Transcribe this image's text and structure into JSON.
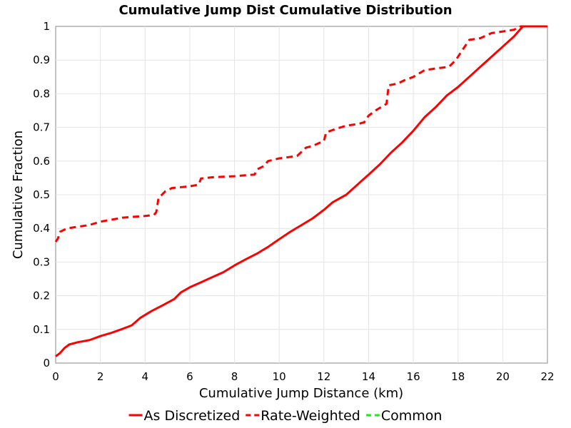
{
  "chart_data": {
    "type": "line",
    "title": "Cumulative Jump Dist Cumulative Distribution",
    "xlabel": "Cumulative Jump Distance (km)",
    "ylabel": "Cumulative Fraction",
    "xlim": [
      0,
      22
    ],
    "ylim": [
      0,
      1
    ],
    "x_ticks": [
      "0",
      "2",
      "4",
      "6",
      "8",
      "10",
      "12",
      "14",
      "16",
      "18",
      "20",
      "22"
    ],
    "y_ticks": [
      "0",
      "0.1",
      "0.2",
      "0.3",
      "0.4",
      "0.5",
      "0.6",
      "0.7",
      "0.8",
      "0.9",
      "1"
    ],
    "grid": true,
    "legend_position": "bottom",
    "series": [
      {
        "name": "As Discretized",
        "color": "#ff0000",
        "style": "solid",
        "points": [
          [
            0.0,
            0.02
          ],
          [
            0.2,
            0.03
          ],
          [
            0.4,
            0.045
          ],
          [
            0.6,
            0.055
          ],
          [
            1.0,
            0.062
          ],
          [
            1.5,
            0.068
          ],
          [
            2.0,
            0.08
          ],
          [
            2.5,
            0.09
          ],
          [
            3.0,
            0.102
          ],
          [
            3.4,
            0.112
          ],
          [
            3.8,
            0.135
          ],
          [
            4.3,
            0.155
          ],
          [
            4.8,
            0.172
          ],
          [
            5.3,
            0.19
          ],
          [
            5.6,
            0.21
          ],
          [
            6.0,
            0.225
          ],
          [
            6.5,
            0.24
          ],
          [
            7.0,
            0.255
          ],
          [
            7.5,
            0.27
          ],
          [
            8.0,
            0.29
          ],
          [
            8.5,
            0.308
          ],
          [
            9.0,
            0.325
          ],
          [
            9.5,
            0.345
          ],
          [
            10.0,
            0.368
          ],
          [
            10.5,
            0.39
          ],
          [
            11.0,
            0.41
          ],
          [
            11.5,
            0.43
          ],
          [
            12.0,
            0.455
          ],
          [
            12.4,
            0.478
          ],
          [
            13.0,
            0.5
          ],
          [
            13.5,
            0.53
          ],
          [
            14.0,
            0.56
          ],
          [
            14.5,
            0.59
          ],
          [
            15.0,
            0.625
          ],
          [
            15.5,
            0.655
          ],
          [
            16.0,
            0.69
          ],
          [
            16.5,
            0.73
          ],
          [
            17.0,
            0.76
          ],
          [
            17.5,
            0.795
          ],
          [
            18.0,
            0.82
          ],
          [
            18.5,
            0.85
          ],
          [
            19.0,
            0.88
          ],
          [
            19.5,
            0.91
          ],
          [
            20.0,
            0.94
          ],
          [
            20.5,
            0.97
          ],
          [
            20.9,
            1.0
          ],
          [
            22.0,
            1.0
          ]
        ]
      },
      {
        "name": "Rate-Weighted",
        "color": "#ff0000",
        "style": "dashed",
        "points": [
          [
            0.0,
            0.36
          ],
          [
            0.1,
            0.37
          ],
          [
            0.2,
            0.39
          ],
          [
            0.5,
            0.4
          ],
          [
            1.0,
            0.405
          ],
          [
            1.5,
            0.41
          ],
          [
            2.0,
            0.42
          ],
          [
            3.0,
            0.432
          ],
          [
            4.0,
            0.437
          ],
          [
            4.4,
            0.44
          ],
          [
            4.5,
            0.448
          ],
          [
            4.6,
            0.49
          ],
          [
            4.9,
            0.51
          ],
          [
            5.2,
            0.52
          ],
          [
            6.0,
            0.525
          ],
          [
            6.4,
            0.53
          ],
          [
            6.5,
            0.548
          ],
          [
            7.0,
            0.552
          ],
          [
            8.0,
            0.555
          ],
          [
            8.9,
            0.56
          ],
          [
            9.0,
            0.575
          ],
          [
            9.3,
            0.585
          ],
          [
            9.5,
            0.6
          ],
          [
            10.0,
            0.608
          ],
          [
            10.8,
            0.615
          ],
          [
            11.2,
            0.64
          ],
          [
            11.5,
            0.645
          ],
          [
            12.0,
            0.66
          ],
          [
            12.1,
            0.685
          ],
          [
            12.5,
            0.695
          ],
          [
            13.0,
            0.705
          ],
          [
            13.5,
            0.71
          ],
          [
            13.8,
            0.715
          ],
          [
            14.0,
            0.735
          ],
          [
            14.3,
            0.75
          ],
          [
            14.8,
            0.77
          ],
          [
            14.9,
            0.825
          ],
          [
            15.3,
            0.83
          ],
          [
            15.6,
            0.84
          ],
          [
            16.0,
            0.85
          ],
          [
            16.5,
            0.87
          ],
          [
            17.0,
            0.875
          ],
          [
            17.6,
            0.88
          ],
          [
            17.9,
            0.9
          ],
          [
            18.2,
            0.93
          ],
          [
            18.5,
            0.96
          ],
          [
            19.0,
            0.965
          ],
          [
            19.5,
            0.98
          ],
          [
            20.0,
            0.985
          ],
          [
            20.5,
            0.99
          ],
          [
            20.8,
            1.0
          ],
          [
            22.0,
            1.0
          ]
        ]
      },
      {
        "name": "Common",
        "color": "#00ff00",
        "style": "dashed",
        "points": []
      }
    ]
  }
}
